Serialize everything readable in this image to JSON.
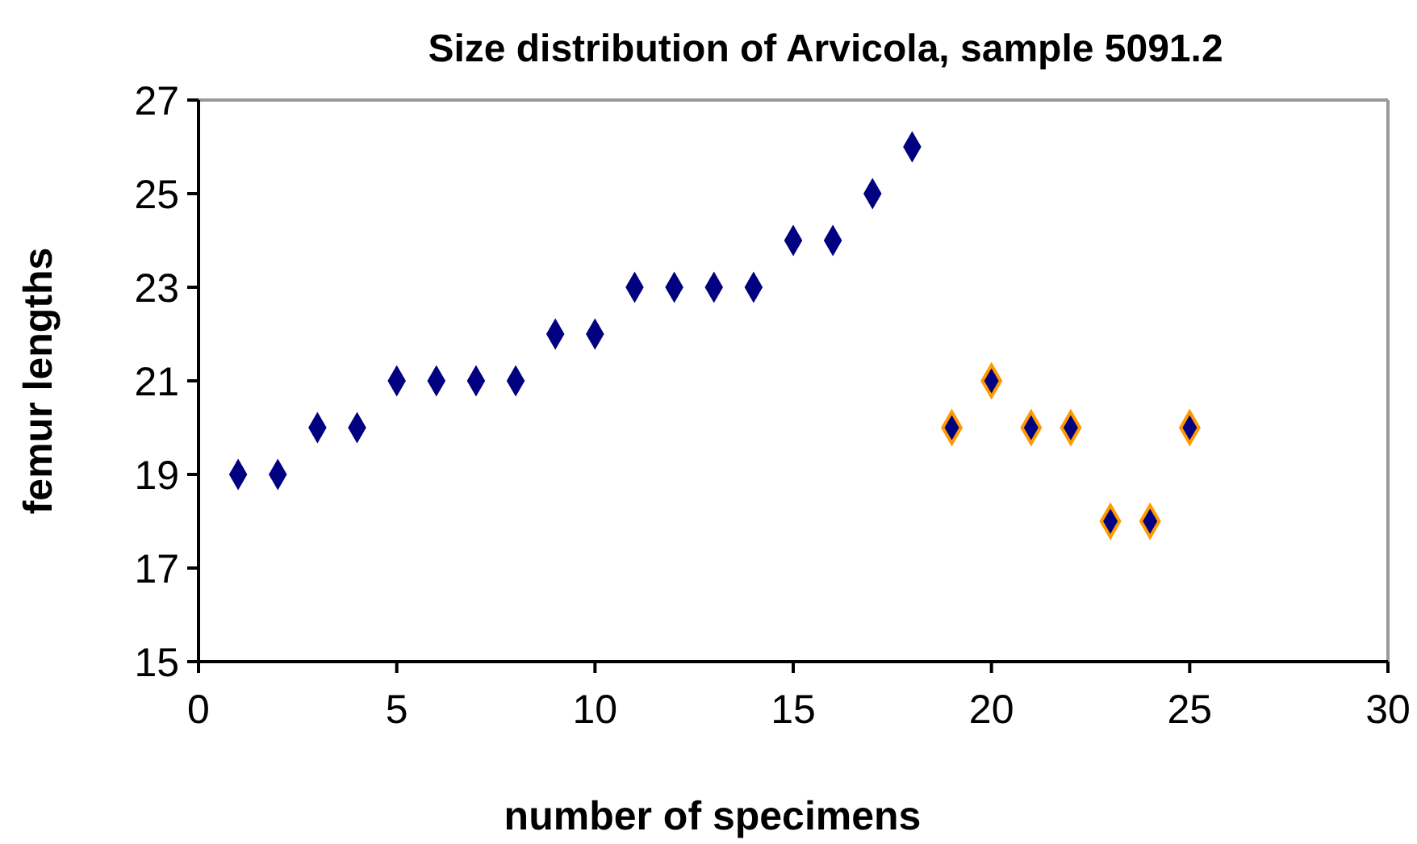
{
  "chart_data": {
    "type": "scatter",
    "title": "Size distribution of Arvicola, sample 5091.2",
    "xlabel": "number of specimens",
    "ylabel": "femur lengths",
    "series": [
      {
        "color": "#000080",
        "x": [
          1,
          2,
          3,
          4,
          5,
          6,
          7,
          8,
          9,
          10,
          11,
          12,
          13,
          14,
          15,
          16,
          17,
          18
        ],
        "values": [
          19,
          19,
          20,
          20,
          21,
          21,
          21,
          21,
          22,
          22,
          23,
          23,
          23,
          23,
          24,
          24,
          25,
          26
        ]
      },
      {
        "color": "#ff9900",
        "x": [
          19,
          20,
          21,
          22,
          23,
          24,
          25
        ],
        "values": [
          20,
          21,
          20,
          20,
          18,
          18,
          20
        ]
      }
    ],
    "xlim": [
      0,
      30
    ],
    "xticks": [
      0,
      5,
      10,
      15,
      20,
      25,
      30
    ],
    "ylim": [
      15,
      27
    ],
    "yticks": [
      15,
      17,
      19,
      21,
      23,
      25,
      27
    ],
    "marker": "diamond",
    "grid": false
  }
}
